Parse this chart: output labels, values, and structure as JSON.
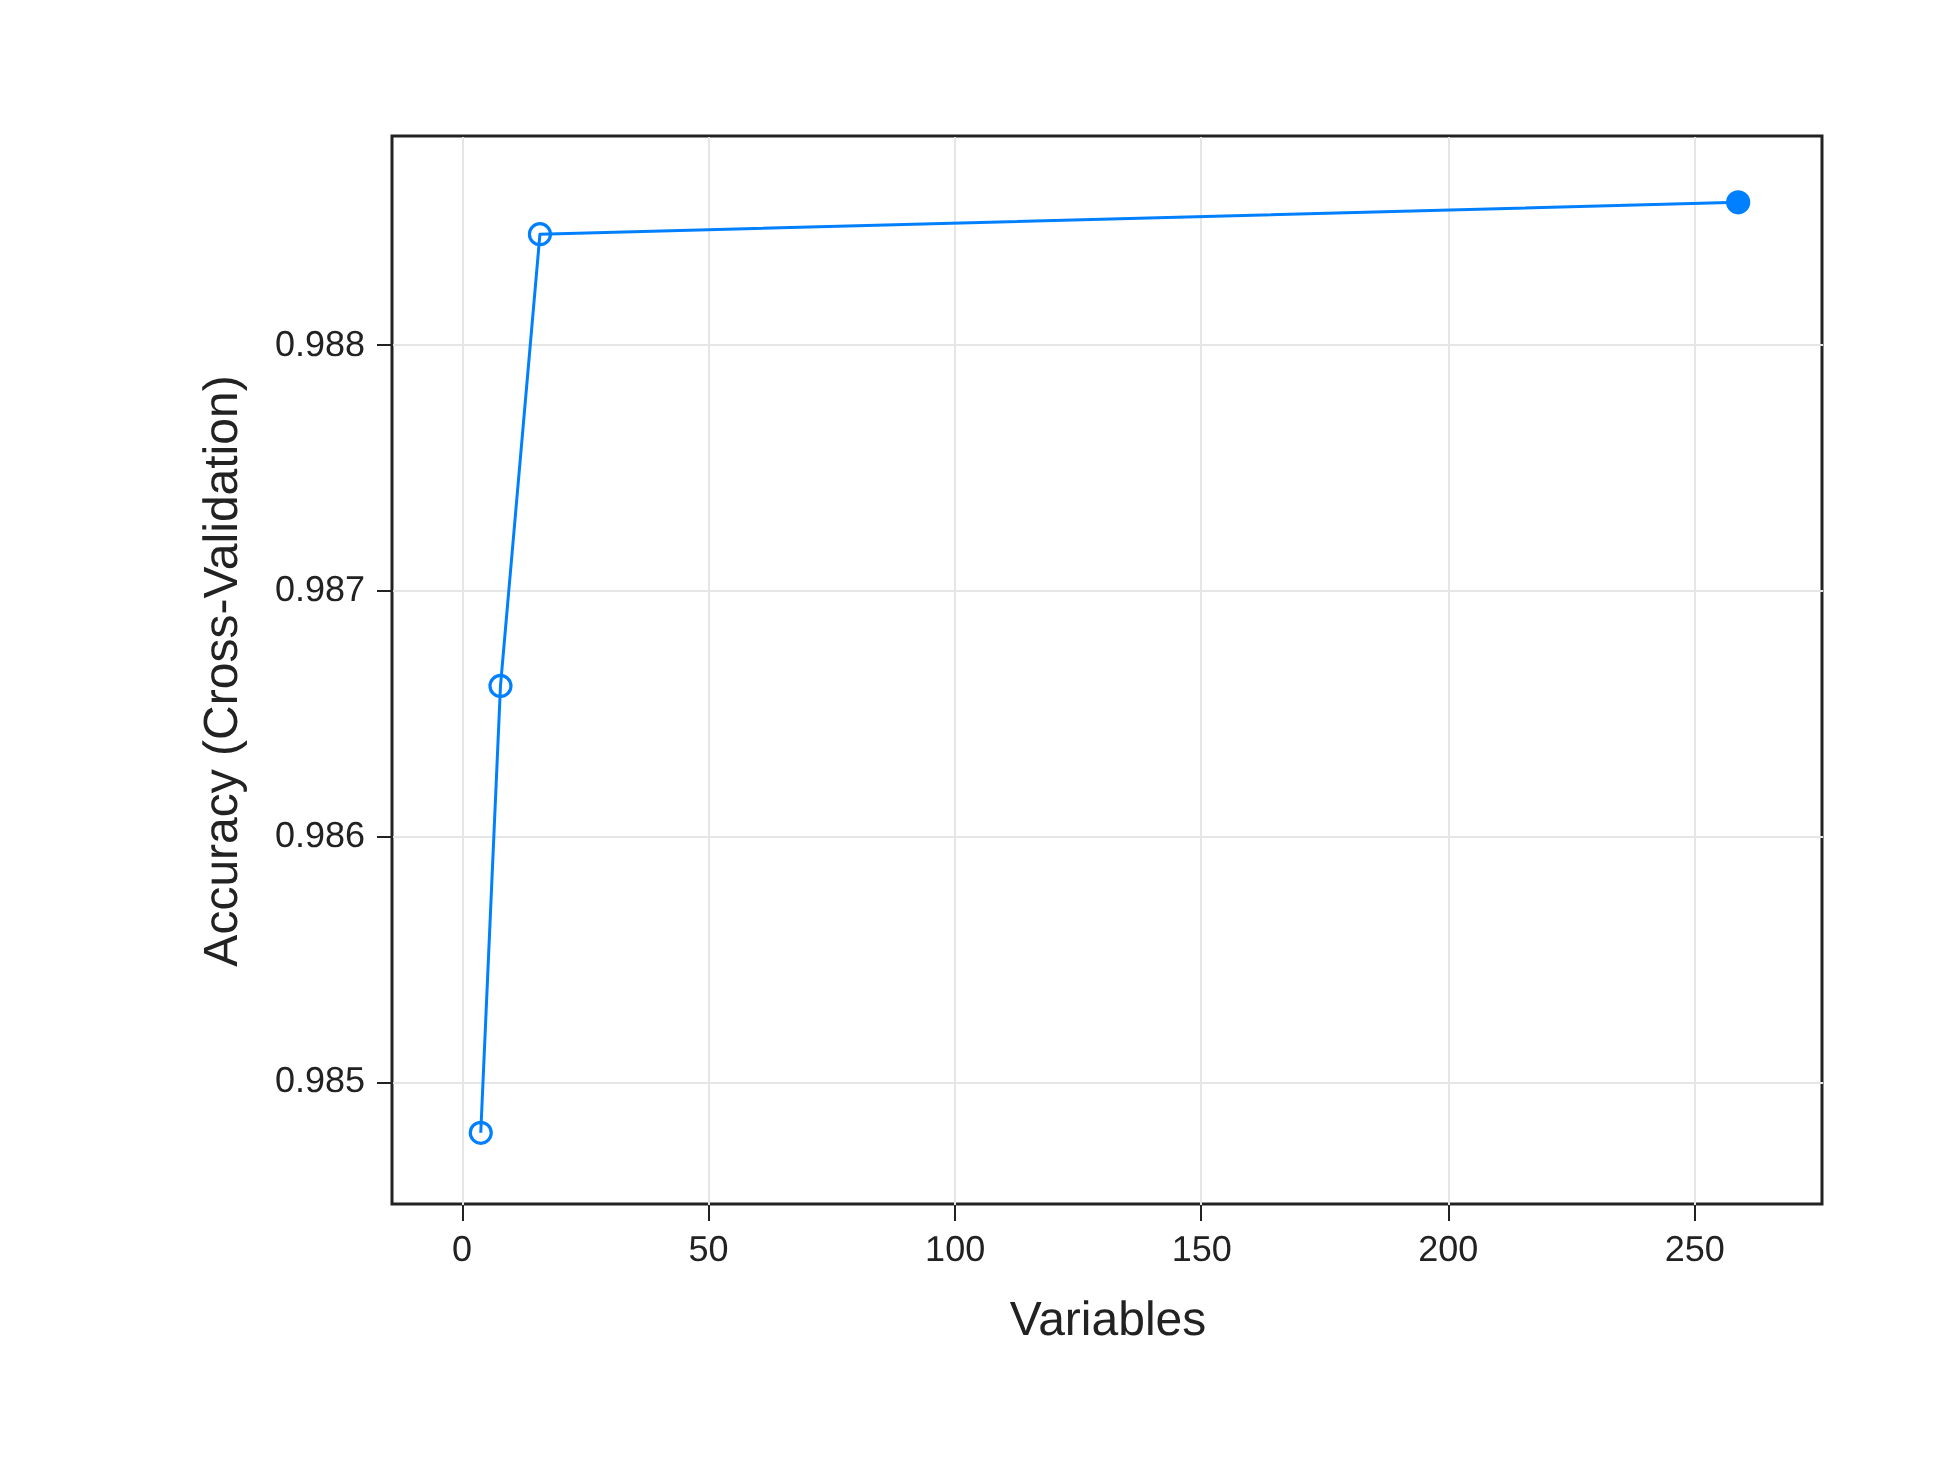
{
  "chart_data": {
    "type": "line",
    "xlabel": "Variables",
    "ylabel": "Accuracy (Cross-Validation)",
    "xlim": [
      -14,
      276
    ],
    "xticks": [
      0,
      50,
      100,
      150,
      200,
      250
    ],
    "ylim": [
      0.9845,
      0.98885
    ],
    "yticks": [
      0.985,
      0.986,
      0.987,
      0.988
    ],
    "grid": true,
    "marker": "circle",
    "line_style": "solid",
    "series": [
      {
        "color": "#0080ff",
        "x": [
          4,
          8,
          16,
          259
        ],
        "values": [
          0.98479,
          0.98661,
          0.98845,
          0.98858
        ]
      },
      {
        "type": "scatter",
        "color": "#0080ff",
        "x": [
          259
        ],
        "values": [
          0.98858
        ]
      }
    ]
  }
}
